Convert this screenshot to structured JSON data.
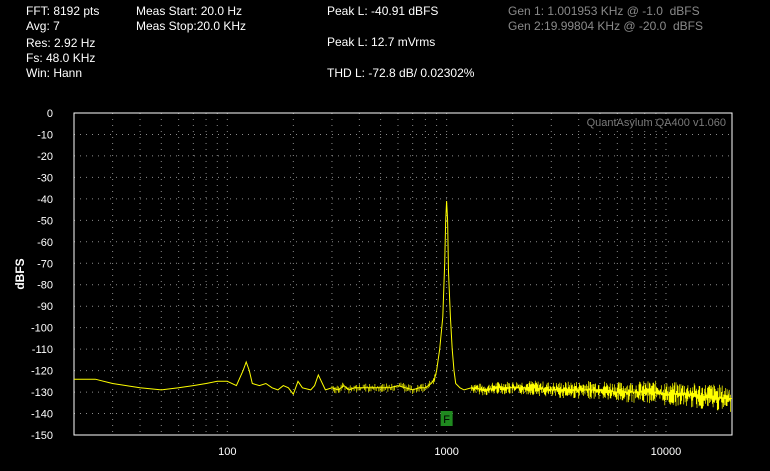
{
  "header": {
    "fft": "FFT: 8192 pts",
    "avg": "Avg: 7",
    "res": "Res: 2.92 Hz",
    "fs": "Fs: 48.0 KHz",
    "win": "Win: Hann",
    "meas_start": "Meas Start: 20.0 Hz",
    "meas_stop": "Meas Stop:20.0 KHz",
    "peak_dbfs": "Peak L: -40.91 dBFS",
    "peak_vrms": "Peak L: 12.7 mVrms",
    "thd": "THD L: -72.8 dB/ 0.02302%",
    "gen1": "Gen 1: 1.001953 KHz @ -1.0  dBFS",
    "gen2": "Gen 2:19.99804 KHz @ -20.0  dBFS"
  },
  "watermark": "QuantAsylum QA400 v1.060",
  "colors": {
    "trace": "#ffff00",
    "grid": "#8c8c8c",
    "marker": "#1f8a1f",
    "axis": "#ffffff",
    "gen_text": "#8a8a8a"
  },
  "chart_data": {
    "type": "line",
    "title": "",
    "xlabel": "",
    "ylabel": "dBFS",
    "x_scale": "log",
    "xlim": [
      20,
      20000
    ],
    "ylim": [
      -150,
      0
    ],
    "x_ticks": [
      100,
      1000,
      10000
    ],
    "x_tick_labels": [
      "100",
      "1000",
      "10000"
    ],
    "y_ticks": [
      0,
      -10,
      -20,
      -30,
      -40,
      -50,
      -60,
      -70,
      -80,
      -90,
      -100,
      -110,
      -120,
      -130,
      -140,
      -150
    ],
    "y_tick_labels": [
      "0",
      "-10",
      "-20",
      "-30",
      "-40",
      "-50",
      "-60",
      "-70",
      "-80",
      "-90",
      "-100",
      "-110",
      "-120",
      "-130",
      "-140",
      "-150"
    ],
    "grid": true,
    "marker": {
      "label": "F",
      "x": 1000
    },
    "series": [
      {
        "name": "",
        "x": [
          20,
          25,
          30,
          40,
          50,
          60,
          70,
          80,
          90,
          100,
          110,
          118,
          122,
          126,
          130,
          140,
          150,
          160,
          170,
          180,
          190,
          200,
          210,
          220,
          240,
          250,
          260,
          280,
          300,
          320,
          340,
          360,
          380,
          400,
          450,
          500,
          550,
          600,
          650,
          700,
          750,
          800,
          850,
          880,
          900,
          930,
          960,
          980,
          990,
          1000,
          1010,
          1020,
          1040,
          1060,
          1080,
          1100,
          1150,
          1200,
          1300,
          1500,
          1700,
          2000,
          2500,
          3000,
          4000,
          5000,
          6000,
          7000,
          8000,
          9000,
          10000,
          12000,
          14000,
          16000,
          18000,
          20000
        ],
        "y": [
          -124,
          -124,
          -126,
          -128,
          -129,
          -128,
          -127,
          -126,
          -125,
          -125,
          -127,
          -120,
          -116,
          -120,
          -126,
          -127,
          -126,
          -128,
          -129,
          -127,
          -128,
          -131,
          -125,
          -128,
          -129,
          -127,
          -122,
          -129,
          -128,
          -129,
          -127,
          -129,
          -128,
          -128,
          -128,
          -128,
          -128,
          -127,
          -128,
          -129,
          -128,
          -128,
          -126,
          -124,
          -120,
          -110,
          -95,
          -70,
          -50,
          -41,
          -50,
          -74,
          -95,
          -110,
          -120,
          -126,
          -128,
          -129,
          -128,
          -129,
          -128,
          -128,
          -128,
          -129,
          -129,
          -129,
          -130,
          -130,
          -130,
          -130,
          -131,
          -131,
          -132,
          -132,
          -133,
          -133
        ]
      }
    ]
  }
}
